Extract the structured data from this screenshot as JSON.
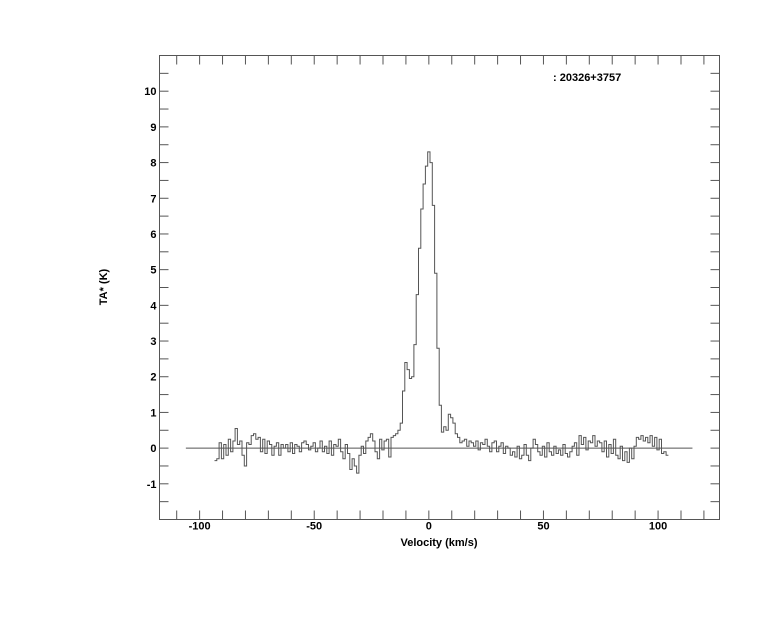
{
  "chart_data": {
    "type": "line",
    "style": "step",
    "title": ": 20326+3757",
    "xlabel": "Velocity (km/s)",
    "ylabel": "TA* (K)",
    "xlim": [
      -117.5,
      126.8
    ],
    "ylim": [
      -2,
      11
    ],
    "x_ticks": [
      -100,
      -50,
      0,
      50,
      100
    ],
    "y_ticks": [
      -1,
      0,
      1,
      2,
      3,
      4,
      5,
      6,
      7,
      8,
      9,
      10
    ],
    "baseline": {
      "y": 0,
      "x_range": [
        -106,
        115
      ]
    },
    "grid": false,
    "line_color": "#555555",
    "x": [
      -93,
      -92,
      -91,
      -90,
      -89,
      -88,
      -87,
      -86,
      -85,
      -84,
      -83,
      -82,
      -81,
      -80,
      -79,
      -78,
      -77,
      -76,
      -75,
      -74,
      -73,
      -72,
      -71,
      -70,
      -69,
      -68,
      -67,
      -66,
      -65,
      -64,
      -63,
      -62,
      -61,
      -60,
      -59,
      -58,
      -57,
      -56,
      -55,
      -54,
      -53,
      -52,
      -51,
      -50,
      -49,
      -48,
      -47,
      -46,
      -45,
      -44,
      -43,
      -42,
      -41,
      -40,
      -39,
      -38,
      -37,
      -36,
      -35,
      -34,
      -33,
      -32,
      -31,
      -30,
      -29,
      -28,
      -27,
      -26,
      -25,
      -24,
      -23,
      -22,
      -21,
      -20,
      -19,
      -18,
      -17,
      -16,
      -15,
      -14,
      -13,
      -12,
      -11,
      -10,
      -9,
      -8,
      -7,
      -6,
      -5,
      -4,
      -3,
      -2,
      -1,
      0,
      1,
      2,
      3,
      4,
      5,
      6,
      7,
      8,
      9,
      10,
      11,
      12,
      13,
      14,
      15,
      16,
      17,
      18,
      19,
      20,
      21,
      22,
      23,
      24,
      25,
      26,
      27,
      28,
      29,
      30,
      31,
      32,
      33,
      34,
      35,
      36,
      37,
      38,
      39,
      40,
      41,
      42,
      43,
      44,
      45,
      46,
      47,
      48,
      49,
      50,
      51,
      52,
      53,
      54,
      55,
      56,
      57,
      58,
      59,
      60,
      61,
      62,
      63,
      64,
      65,
      66,
      67,
      68,
      69,
      70,
      71,
      72,
      73,
      74,
      75,
      76,
      77,
      78,
      79,
      80,
      81,
      82,
      83,
      84,
      85,
      86,
      87,
      88,
      89,
      90,
      91,
      92,
      93,
      94,
      95,
      96,
      97,
      98,
      99,
      100,
      101,
      102,
      103,
      104
    ],
    "y": [
      -0.35,
      -0.3,
      0.15,
      -0.3,
      0.1,
      -0.2,
      0.25,
      -0.1,
      0.2,
      0.55,
      0.1,
      0.2,
      -0.2,
      -0.5,
      0.15,
      0.1,
      0.35,
      0.4,
      0.25,
      0.3,
      -0.1,
      0.25,
      -0.15,
      0.2,
      0.1,
      -0.2,
      0.05,
      0.15,
      -0.2,
      0.1,
      0.0,
      0.1,
      -0.1,
      0.15,
      -0.15,
      0.1,
      0.05,
      -0.1,
      0.15,
      0.2,
      0.1,
      -0.05,
      0.05,
      0.15,
      -0.1,
      0.0,
      0.2,
      -0.1,
      0.05,
      -0.15,
      0.2,
      -0.2,
      0.1,
      0.05,
      0.25,
      -0.1,
      -0.3,
      0.1,
      -0.15,
      -0.6,
      -0.3,
      -0.5,
      -0.7,
      -0.2,
      0.05,
      -0.15,
      0.2,
      0.3,
      0.4,
      0.2,
      -0.1,
      -0.3,
      0.25,
      -0.05,
      0.2,
      0.25,
      -0.25,
      0.3,
      0.35,
      0.4,
      0.5,
      0.7,
      1.6,
      2.4,
      2.2,
      1.95,
      2.0,
      2.9,
      4.3,
      5.6,
      6.7,
      7.4,
      7.9,
      8.3,
      8.0,
      6.8,
      4.9,
      2.8,
      1.2,
      0.45,
      0.6,
      0.5,
      0.95,
      0.85,
      0.7,
      0.4,
      0.3,
      0.15,
      0.2,
      0.25,
      0.05,
      0.2,
      0.15,
      0.05,
      0.2,
      -0.05,
      0.15,
      0.1,
      0.25,
      0.05,
      -0.1,
      0.15,
      0.2,
      -0.1,
      0.05,
      0.15,
      -0.15,
      0.05,
      0.0,
      -0.2,
      -0.1,
      -0.25,
      0.05,
      -0.3,
      -0.2,
      0.1,
      -0.2,
      -0.35,
      0.0,
      0.25,
      0.1,
      -0.1,
      -0.2,
      0.05,
      -0.25,
      0.15,
      -0.1,
      -0.2,
      0.05,
      -0.15,
      -0.05,
      -0.2,
      0.1,
      -0.15,
      -0.25,
      -0.1,
      0.05,
      0.15,
      -0.2,
      0.35,
      0.1,
      0.3,
      -0.05,
      0.2,
      0.15,
      0.35,
      0.05,
      0.2,
      0.15,
      -0.1,
      0.2,
      -0.25,
      0.1,
      -0.15,
      0.25,
      -0.2,
      -0.3,
      0.05,
      -0.35,
      -0.1,
      -0.4,
      0.0,
      -0.3,
      0.05,
      0.3,
      0.25,
      0.35,
      0.2,
      0.3,
      0.15,
      0.35,
      0.05,
      0.3,
      -0.05,
      0.25,
      -0.15,
      -0.1,
      -0.2
    ]
  }
}
